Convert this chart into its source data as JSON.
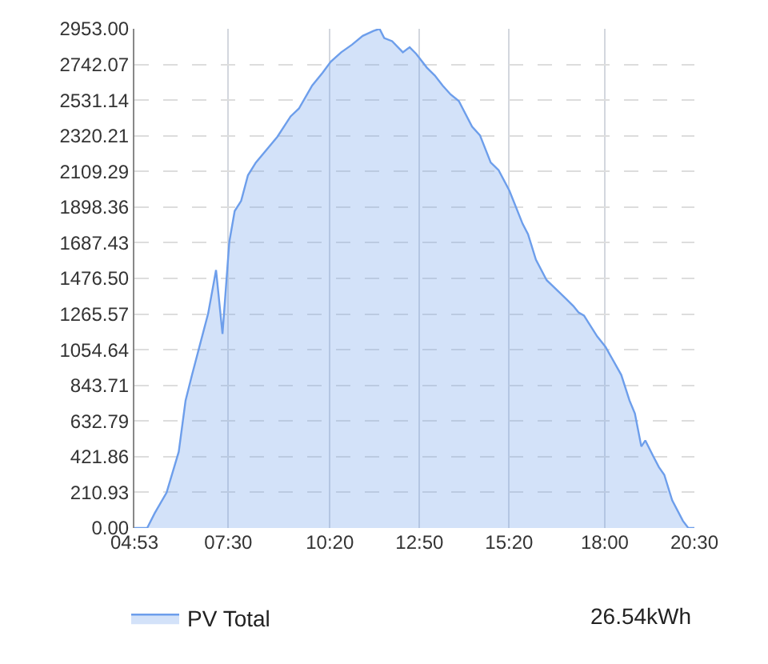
{
  "chart_data": {
    "type": "area",
    "x": [
      4.883,
      5.24,
      5.45,
      5.78,
      6.12,
      6.31,
      6.49,
      6.94,
      7.16,
      7.34,
      7.53,
      7.68,
      7.86,
      8.05,
      8.27,
      8.87,
      9.24,
      9.47,
      9.84,
      10.13,
      10.36,
      10.65,
      10.95,
      11.25,
      11.55,
      11.72,
      11.85,
      12.07,
      12.37,
      12.56,
      12.74,
      13.04,
      13.26,
      13.48,
      13.7,
      13.93,
      14.3,
      14.52,
      14.82,
      15.04,
      15.34,
      15.71,
      15.86,
      16.08,
      16.38,
      16.53,
      16.9,
      17.12,
      17.27,
      17.42,
      17.79,
      18.02,
      18.46,
      18.69,
      18.84,
      19.02,
      19.13,
      19.36,
      19.51,
      19.66,
      19.88,
      20.18,
      20.33,
      20.5
    ],
    "series": [
      {
        "name": "PV Total",
        "color": "#6d9eeb",
        "values": [
          0,
          0,
          88,
          209,
          451,
          754,
          906,
          1269,
          1526,
          1148,
          1693,
          1875,
          1935,
          2087,
          2162,
          2314,
          2435,
          2481,
          2617,
          2693,
          2759,
          2814,
          2859,
          2911,
          2941,
          2953,
          2898,
          2880,
          2814,
          2844,
          2805,
          2723,
          2677,
          2617,
          2565,
          2526,
          2374,
          2323,
          2162,
          2117,
          1996,
          1799,
          1738,
          1587,
          1466,
          1436,
          1360,
          1314,
          1275,
          1257,
          1133,
          1072,
          906,
          754,
          678,
          482,
          518,
          421,
          360,
          315,
          164,
          42,
          0,
          0
        ]
      }
    ],
    "xlim": [
      4.883,
      20.5
    ],
    "xticks": [
      {
        "value": 4.883,
        "label": "04:53"
      },
      {
        "value": 7.5,
        "label": "07:30"
      },
      {
        "value": 10.333,
        "label": "10:20"
      },
      {
        "value": 12.833,
        "label": "12:50"
      },
      {
        "value": 15.333,
        "label": "15:20"
      },
      {
        "value": 18,
        "label": "18:00"
      },
      {
        "value": 20.5,
        "label": "20:30"
      }
    ],
    "ylim": [
      0,
      2953
    ],
    "yticks": [
      {
        "value": 0,
        "label": "0.00"
      },
      210.93,
      421.86,
      632.79,
      843.71,
      1054.64,
      1265.57,
      {
        "value": 1476.5,
        "label": "1476.50"
      },
      1687.43,
      1898.36,
      2109.29,
      2320.21,
      2531.14,
      2742.07,
      {
        "value": 2953,
        "label": "2953.00"
      }
    ],
    "grid": true,
    "legend": "bottom left",
    "annotations": [
      "26.54kWh"
    ]
  }
}
